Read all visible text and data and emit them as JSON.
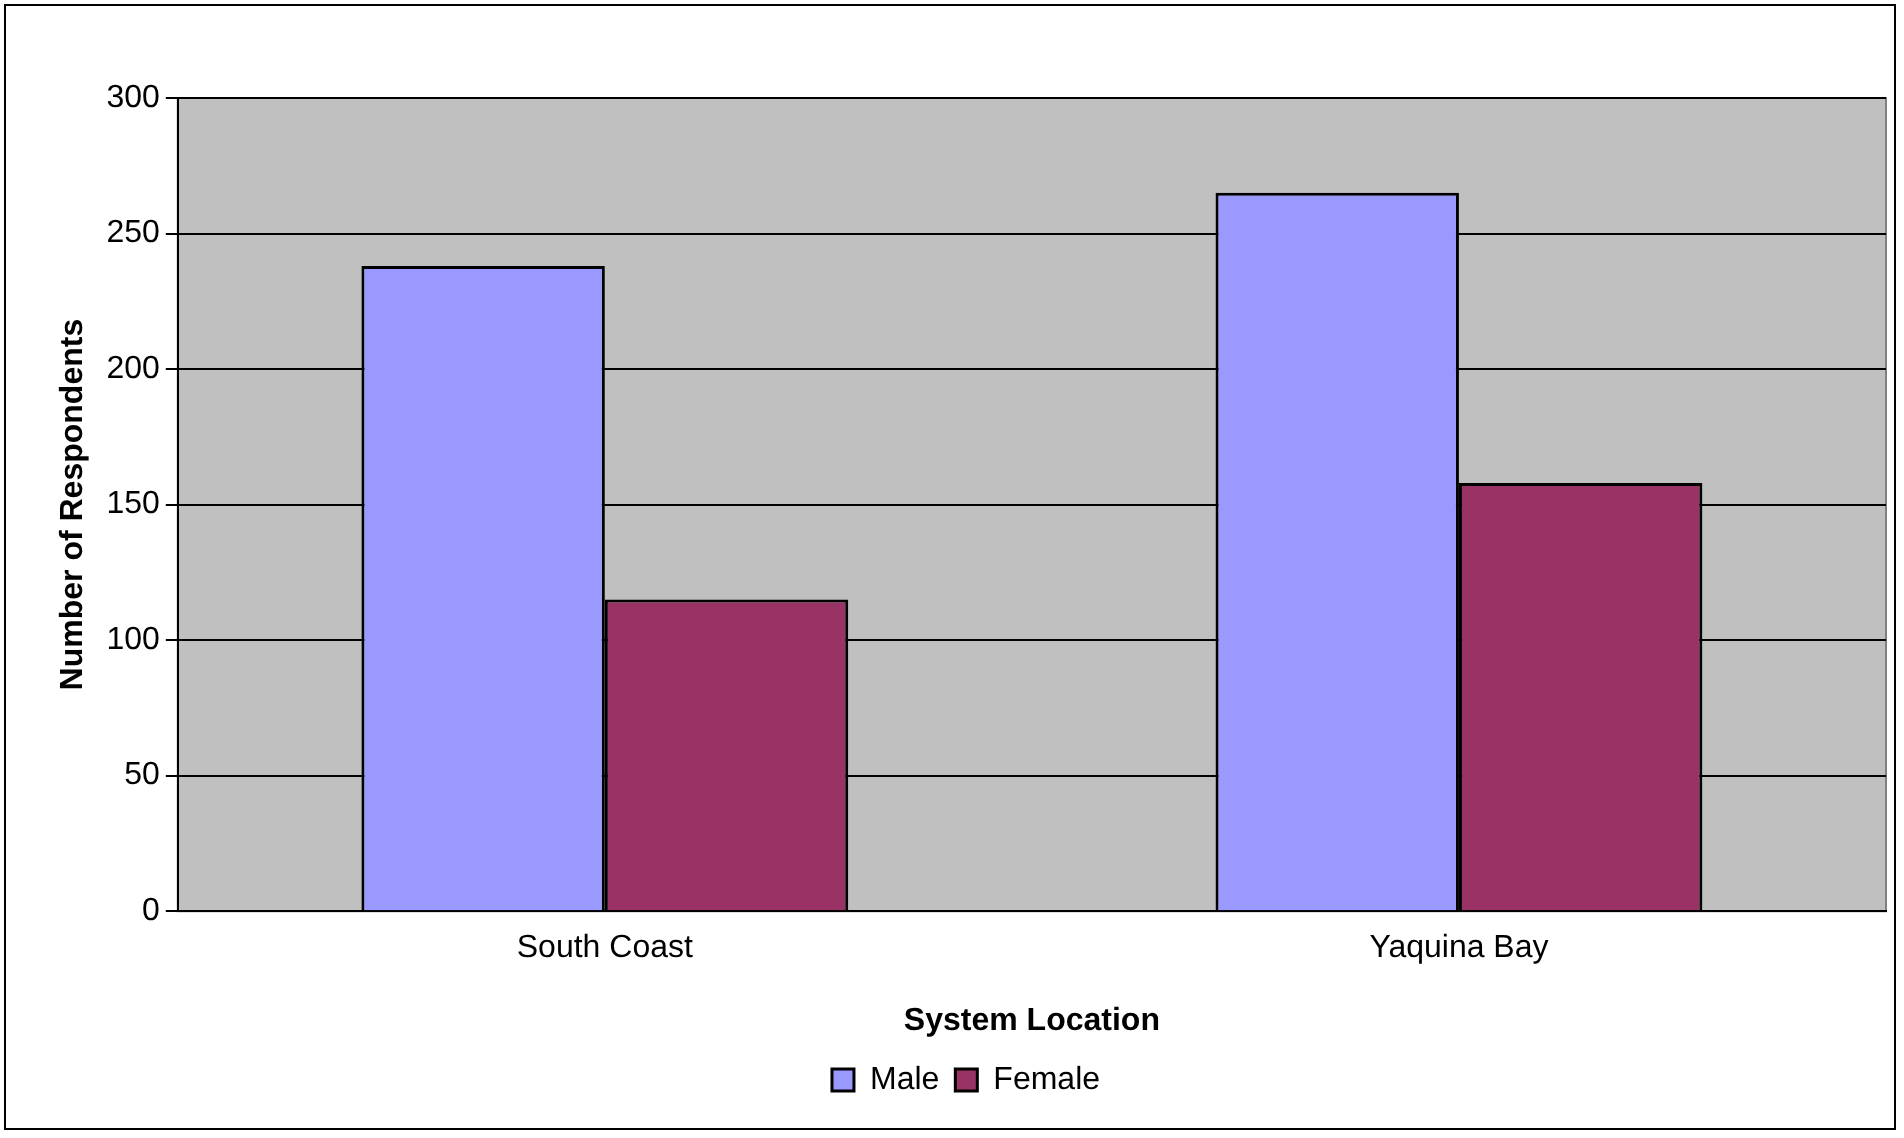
{
  "chart_data": {
    "type": "bar",
    "xlabel": "System Location",
    "ylabel": "Number of Respondents",
    "categories": [
      "South Coast",
      "Yaquina Bay"
    ],
    "series": [
      {
        "name": "Male",
        "color": "#9999ff",
        "values": [
          238,
          265
        ]
      },
      {
        "name": "Female",
        "color": "#993366",
        "values": [
          115,
          158
        ]
      }
    ],
    "ylim": [
      0,
      300
    ],
    "yticks": [
      0,
      50,
      100,
      150,
      200,
      250,
      300
    ],
    "grid": "y",
    "legend": "bottom"
  }
}
